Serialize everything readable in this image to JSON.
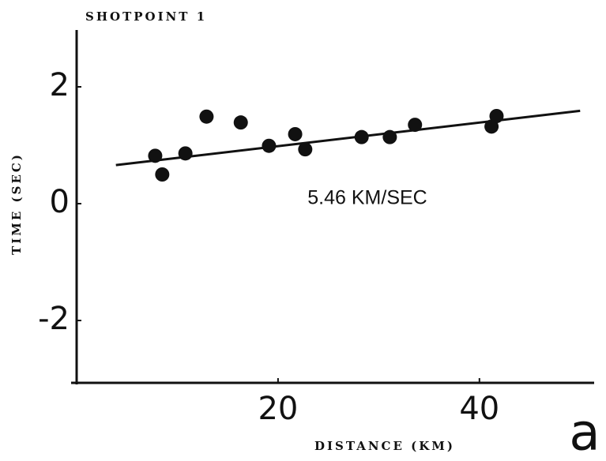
{
  "chart_data": {
    "type": "scatter",
    "title": "SHOTPOINT 1",
    "xlabel": "DISTANCE (KM)",
    "ylabel": "TIME (SEC)",
    "annotation": "5.46 KM/SEC",
    "panel_label": "a",
    "x": [
      7.8,
      8.5,
      10.8,
      12.9,
      16.3,
      19.1,
      21.7,
      22.7,
      28.3,
      31.1,
      33.6,
      41.2,
      41.7
    ],
    "values": [
      0.82,
      0.5,
      0.86,
      1.49,
      1.39,
      0.99,
      1.19,
      0.93,
      1.14,
      1.14,
      1.35,
      1.32,
      1.5
    ],
    "color": "#111111",
    "fit_line": {
      "x": [
        3.9,
        50
      ],
      "y": [
        0.66,
        1.59
      ]
    },
    "xlim": [
      0,
      51
    ],
    "ylim": [
      -3,
      3
    ],
    "xticks": [
      20,
      40
    ],
    "yticks": [
      -2,
      0,
      2
    ]
  }
}
